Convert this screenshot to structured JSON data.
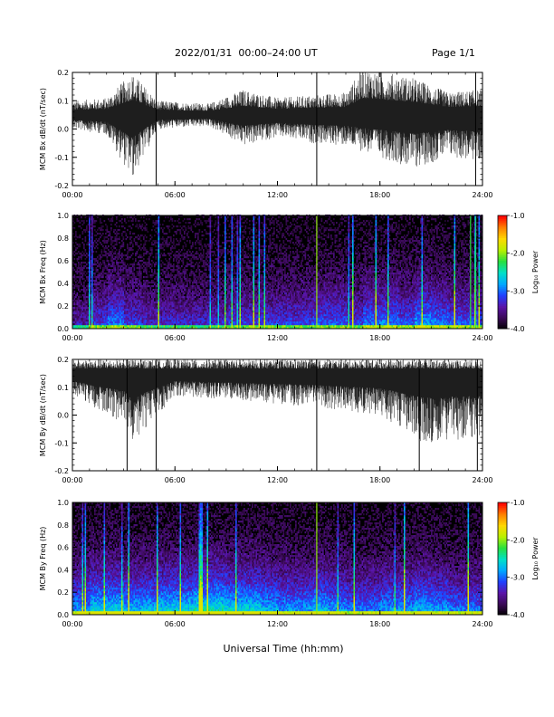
{
  "header": {
    "title": "2022/01/31  00:00–24:00 UT",
    "page_label": "Page 1/1"
  },
  "footer": {
    "x_title": "Universal Time (hh:mm)"
  },
  "colors": {
    "trace": "#000000",
    "background": "#ffffff",
    "colorscale": [
      "#000000",
      "#3a0a55",
      "#5a14a8",
      "#2040ff",
      "#00a8ff",
      "#00e0c8",
      "#28e040",
      "#b8f000",
      "#ffd800",
      "#ff8000",
      "#ff0000"
    ]
  },
  "chart_data": [
    {
      "type": "line",
      "id": "bx_dbdt",
      "ylabel": "MCM Bx dB/dt (nT/sec)",
      "x_ticks": [
        "00:00",
        "06:00",
        "12:00",
        "18:00",
        "24:00"
      ],
      "xlim": [
        0,
        24
      ],
      "ylim": [
        -0.2,
        0.2
      ],
      "y_ticks": [
        "-0.2",
        "-0.1",
        "0.0",
        "0.1",
        "0.2"
      ],
      "baseline": 0.05,
      "envelope": [
        {
          "x": 0,
          "upper": 0.1,
          "lower": 0.0
        },
        {
          "x": 2,
          "upper": 0.11,
          "lower": -0.02
        },
        {
          "x": 3.5,
          "upper": 0.2,
          "lower": -0.18
        },
        {
          "x": 5,
          "upper": 0.1,
          "lower": 0.0
        },
        {
          "x": 8,
          "upper": 0.09,
          "lower": 0.01
        },
        {
          "x": 10,
          "upper": 0.14,
          "lower": -0.06
        },
        {
          "x": 12,
          "upper": 0.11,
          "lower": -0.03
        },
        {
          "x": 14,
          "upper": 0.12,
          "lower": -0.05
        },
        {
          "x": 16,
          "upper": 0.13,
          "lower": -0.06
        },
        {
          "x": 17,
          "upper": 0.22,
          "lower": -0.08
        },
        {
          "x": 20,
          "upper": 0.18,
          "lower": -0.14
        },
        {
          "x": 22,
          "upper": 0.13,
          "lower": -0.1
        },
        {
          "x": 24,
          "upper": 0.14,
          "lower": -0.12
        }
      ],
      "spikes": [
        {
          "x": 4.9,
          "min": -0.2,
          "max": 0.2
        },
        {
          "x": 14.3,
          "min": -0.2,
          "max": 0.2
        },
        {
          "x": 23.6,
          "min": -0.2,
          "max": 0.2
        }
      ]
    },
    {
      "type": "heatmap",
      "id": "bx_spec",
      "ylabel": "MCM Bx Freq (Hz)",
      "x_ticks": [
        "00:00",
        "06:00",
        "12:00",
        "18:00",
        "24:00"
      ],
      "xlim": [
        0,
        24
      ],
      "ylim": [
        0,
        1.0
      ],
      "y_ticks": [
        "0.0",
        "0.2",
        "0.4",
        "0.6",
        "0.8",
        "1.0"
      ],
      "colorbar": {
        "label": "Log₁₀ Power",
        "range": [
          -4.0,
          -1.0
        ],
        "ticks": [
          "-1.0",
          "-2.0",
          "-3.0",
          "-4.0"
        ]
      },
      "activity": [
        0.25,
        0.35,
        0.45,
        0.35,
        0.3,
        0.3,
        0.3,
        0.3,
        0.3,
        0.35,
        0.35,
        0.35,
        0.35,
        0.35,
        0.4,
        0.4,
        0.35,
        0.45,
        0.45,
        0.4,
        0.5,
        0.45,
        0.4,
        0.4
      ]
    },
    {
      "type": "line",
      "id": "by_dbdt",
      "ylabel": "MCM By dB/dt (nT/sec)",
      "x_ticks": [
        "00:00",
        "06:00",
        "12:00",
        "18:00",
        "24:00"
      ],
      "xlim": [
        0,
        24
      ],
      "ylim": [
        -0.2,
        0.2
      ],
      "y_ticks": [
        "-0.2",
        "-0.1",
        "0.0",
        "0.1",
        "0.2"
      ],
      "baseline": 0.15,
      "envelope": [
        {
          "x": 0,
          "upper": 0.2,
          "lower": 0.07
        },
        {
          "x": 3,
          "upper": 0.2,
          "lower": -0.03
        },
        {
          "x": 3.5,
          "upper": 0.2,
          "lower": -0.1
        },
        {
          "x": 6,
          "upper": 0.2,
          "lower": 0.07
        },
        {
          "x": 10,
          "upper": 0.2,
          "lower": 0.05
        },
        {
          "x": 14,
          "upper": 0.2,
          "lower": 0.03
        },
        {
          "x": 18,
          "upper": 0.2,
          "lower": 0.0
        },
        {
          "x": 20.5,
          "upper": 0.2,
          "lower": -0.1
        },
        {
          "x": 24,
          "upper": 0.2,
          "lower": -0.08
        }
      ],
      "spikes": [
        {
          "x": 3.2,
          "min": -0.2,
          "max": 0.2
        },
        {
          "x": 4.9,
          "min": -0.2,
          "max": 0.2
        },
        {
          "x": 14.3,
          "min": -0.2,
          "max": 0.2
        },
        {
          "x": 20.3,
          "min": -0.2,
          "max": 0.2
        },
        {
          "x": 23.7,
          "min": -0.2,
          "max": 0.2
        }
      ]
    },
    {
      "type": "heatmap",
      "id": "by_spec",
      "ylabel": "MCM By Freq (Hz)",
      "x_ticks": [
        "00:00",
        "06:00",
        "12:00",
        "18:00",
        "24:00"
      ],
      "xlim": [
        0,
        24
      ],
      "ylim": [
        0,
        1.0
      ],
      "y_ticks": [
        "0.0",
        "0.2",
        "0.4",
        "0.6",
        "0.8",
        "1.0"
      ],
      "colorbar": {
        "label": "Log₁₀ Power",
        "range": [
          -4.0,
          -1.0
        ],
        "ticks": [
          "-1.0",
          "-2.0",
          "-3.0",
          "-4.0"
        ]
      },
      "activity": [
        0.5,
        0.6,
        0.6,
        0.55,
        0.55,
        0.6,
        0.6,
        0.65,
        0.65,
        0.6,
        0.6,
        0.55,
        0.5,
        0.5,
        0.55,
        0.5,
        0.45,
        0.45,
        0.5,
        0.5,
        0.55,
        0.5,
        0.45,
        0.45
      ]
    }
  ]
}
